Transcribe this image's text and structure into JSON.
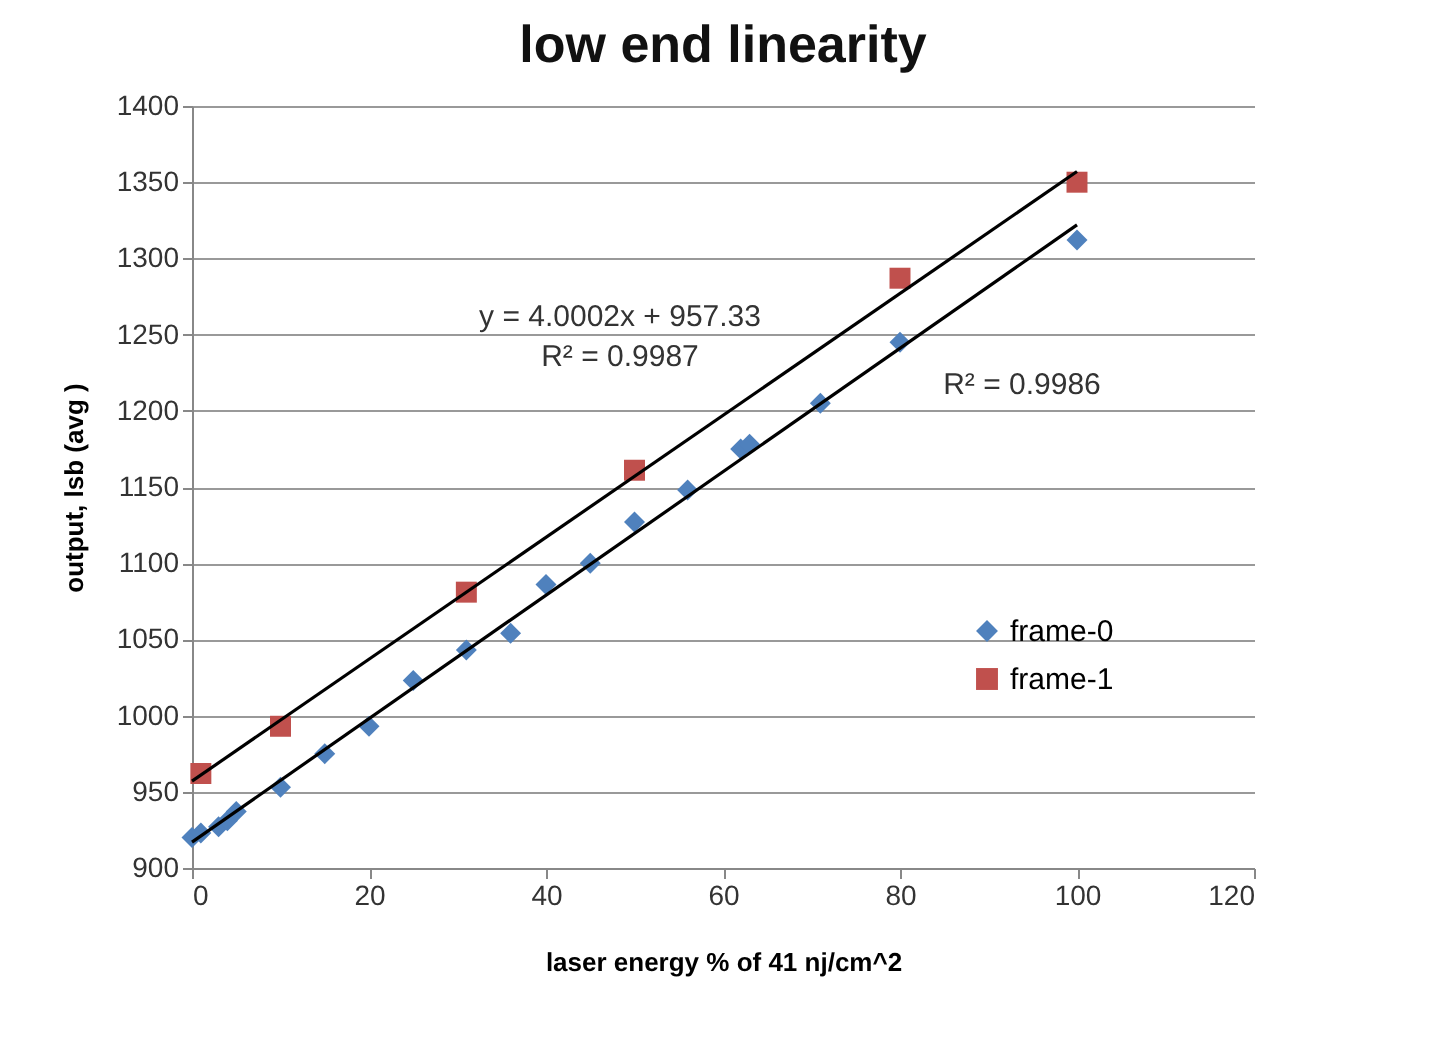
{
  "chart_data": {
    "type": "scatter",
    "title": "low end linearity",
    "xlabel": "laser energy % of 41 nj/cm^2",
    "ylabel": "output, lsb (avg )",
    "xlim": [
      0,
      120
    ],
    "xticks": [
      0,
      20,
      40,
      60,
      80,
      100,
      120
    ],
    "ylim": [
      900,
      1400
    ],
    "yticks": [
      900,
      950,
      1000,
      1050,
      1100,
      1150,
      1200,
      1250,
      1300,
      1350,
      1400
    ],
    "grid": "y",
    "legend": "right",
    "series": [
      {
        "name": "frame-0",
        "color": "#4f81bd",
        "marker": "diamond",
        "x": [
          0,
          1,
          3,
          4,
          5,
          10,
          15,
          20,
          25,
          31,
          36,
          40,
          45,
          50,
          56,
          62,
          63,
          71,
          80,
          100
        ],
        "values": [
          920,
          923,
          927,
          931,
          937,
          953,
          975,
          993,
          1023,
          1043,
          1054,
          1086,
          1100,
          1127,
          1148,
          1175,
          1178,
          1205,
          1245,
          1312
        ]
      },
      {
        "name": "frame-1",
        "color": "#c0504d",
        "marker": "square",
        "x": [
          1,
          10,
          31,
          50,
          80,
          100
        ],
        "values": [
          962,
          993,
          1081,
          1161,
          1287,
          1350
        ]
      },
      {
        "type": "line",
        "color": "#000000",
        "x": [
          0,
          100
        ],
        "values": [
          957,
          1357
        ]
      },
      {
        "type": "line",
        "color": "#000000",
        "x": [
          0,
          100
        ],
        "values": [
          917,
          1322
        ]
      }
    ],
    "annotations": [
      "y = 4.0002x + 957.33",
      "R² = 0.9987",
      "R² = 0.9986"
    ]
  }
}
